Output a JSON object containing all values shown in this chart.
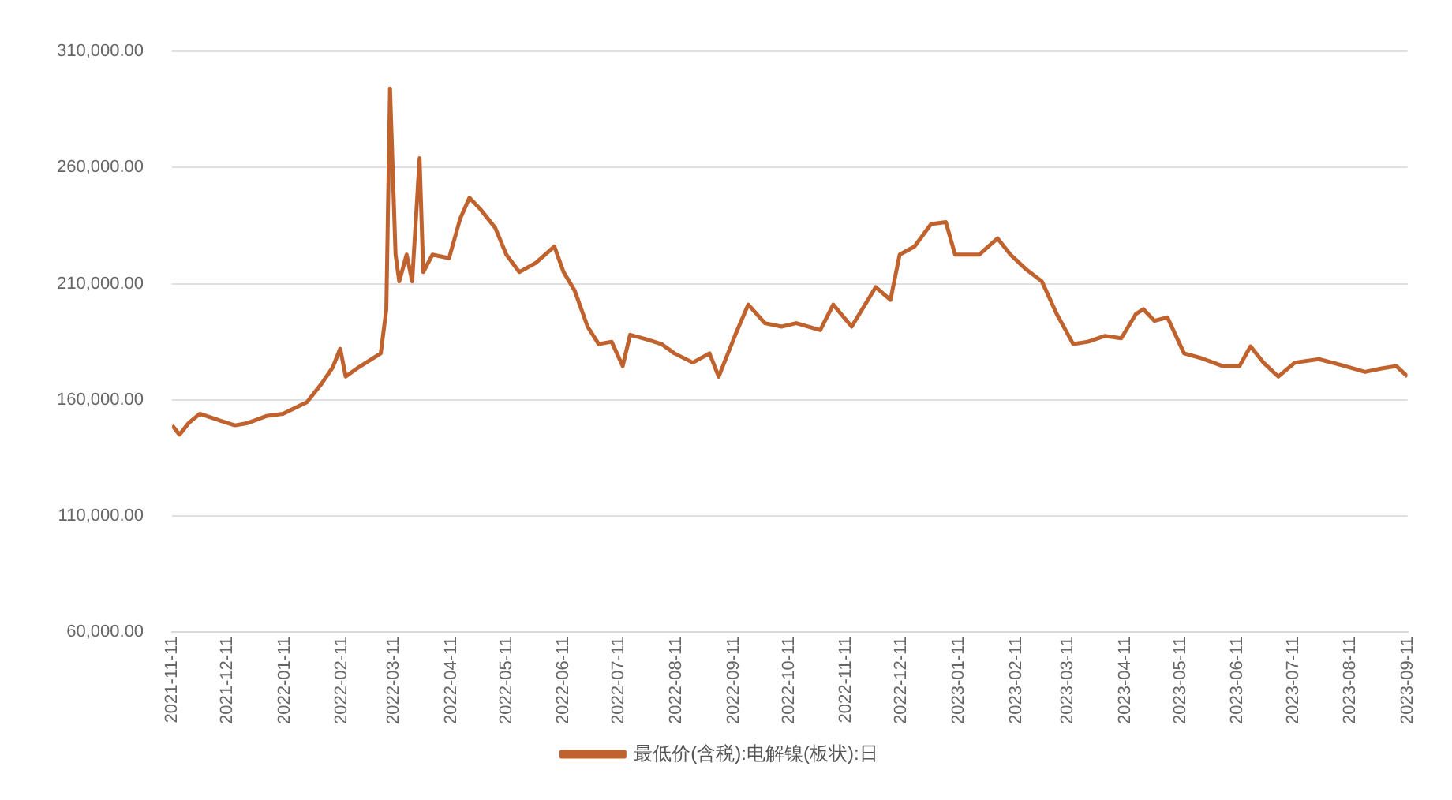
{
  "chart_data": {
    "type": "line",
    "legend": "bottom",
    "grid": "y",
    "marker": "none",
    "line_style": "solid",
    "xlim": [
      "2021-11-11",
      "2023-09-11"
    ],
    "xticks": [
      "2021-11-11",
      "2021-12-11",
      "2022-01-11",
      "2022-02-11",
      "2022-03-11",
      "2022-04-11",
      "2022-05-11",
      "2022-06-11",
      "2022-07-11",
      "2022-08-11",
      "2022-09-11",
      "2022-10-11",
      "2022-11-11",
      "2022-12-11",
      "2023-01-11",
      "2023-02-11",
      "2023-03-11",
      "2023-04-11",
      "2023-05-11",
      "2023-06-11",
      "2023-07-11",
      "2023-08-11",
      "2023-09-11"
    ],
    "ylim": [
      60000,
      310000
    ],
    "yticks": [
      {
        "value": 60000,
        "label": "60,000.00"
      },
      {
        "value": 110000,
        "label": "110,000.00"
      },
      {
        "value": 160000,
        "label": "160,000.00"
      },
      {
        "value": 210000,
        "label": "210,000.00"
      },
      {
        "value": 260000,
        "label": "260,000.00"
      },
      {
        "value": 310000,
        "label": "310,000.00"
      }
    ],
    "x": [
      "2021-11-11",
      "2021-11-15",
      "2021-11-20",
      "2021-11-26",
      "2021-12-07",
      "2021-12-15",
      "2021-12-22",
      "2022-01-01",
      "2022-01-10",
      "2022-01-23",
      "2022-01-31",
      "2022-02-06",
      "2022-02-10",
      "2022-02-13",
      "2022-02-20",
      "2022-03-04",
      "2022-03-07",
      "2022-03-09",
      "2022-03-12",
      "2022-03-14",
      "2022-03-18",
      "2022-03-21",
      "2022-03-25",
      "2022-03-27",
      "2022-04-01",
      "2022-04-10",
      "2022-04-16",
      "2022-04-21",
      "2022-04-27",
      "2022-05-05",
      "2022-05-11",
      "2022-05-18",
      "2022-05-27",
      "2022-06-06",
      "2022-06-11",
      "2022-06-17",
      "2022-06-24",
      "2022-06-30",
      "2022-07-07",
      "2022-07-13",
      "2022-07-17",
      "2022-07-26",
      "2022-08-03",
      "2022-08-10",
      "2022-08-20",
      "2022-08-29",
      "2022-09-03",
      "2022-09-12",
      "2022-09-19",
      "2022-09-28",
      "2022-10-07",
      "2022-10-15",
      "2022-10-28",
      "2022-11-04",
      "2022-11-14",
      "2022-11-27",
      "2022-12-05",
      "2022-12-10",
      "2022-12-18",
      "2022-12-27",
      "2023-01-04",
      "2023-01-09",
      "2023-01-22",
      "2023-02-01",
      "2023-02-08",
      "2023-02-16",
      "2023-02-25",
      "2023-03-05",
      "2023-03-14",
      "2023-03-22",
      "2023-03-31",
      "2023-04-09",
      "2023-04-17",
      "2023-04-21",
      "2023-04-27",
      "2023-05-04",
      "2023-05-13",
      "2023-05-22",
      "2023-06-03",
      "2023-06-12",
      "2023-06-18",
      "2023-06-25",
      "2023-07-03",
      "2023-07-12",
      "2023-07-25",
      "2023-08-06",
      "2023-08-19",
      "2023-08-28",
      "2023-09-05",
      "2023-09-11"
    ],
    "series": [
      {
        "name": "最低价(含税):电解镍(板状):日",
        "color": "#c0622d",
        "values": [
          149000,
          145000,
          150000,
          154000,
          151000,
          149000,
          150000,
          153000,
          154000,
          159000,
          167000,
          174000,
          182000,
          170000,
          174000,
          180000,
          199000,
          294000,
          222500,
          211000,
          222500,
          211000,
          264000,
          215000,
          222500,
          221000,
          238000,
          247000,
          242000,
          234000,
          222500,
          215000,
          219000,
          226000,
          215000,
          207000,
          191500,
          184000,
          185000,
          174500,
          188000,
          186000,
          184000,
          180000,
          176000,
          180000,
          170000,
          188000,
          201000,
          193000,
          191500,
          193000,
          190000,
          201000,
          191500,
          208500,
          203000,
          222500,
          226000,
          235700,
          236500,
          222500,
          222500,
          229500,
          222500,
          216500,
          211000,
          197000,
          184000,
          185000,
          187500,
          186500,
          197000,
          199000,
          194000,
          195500,
          180000,
          178000,
          174500,
          174500,
          183000,
          176000,
          170000,
          176000,
          177500,
          175000,
          172000,
          173500,
          174500,
          170000
        ]
      }
    ]
  }
}
